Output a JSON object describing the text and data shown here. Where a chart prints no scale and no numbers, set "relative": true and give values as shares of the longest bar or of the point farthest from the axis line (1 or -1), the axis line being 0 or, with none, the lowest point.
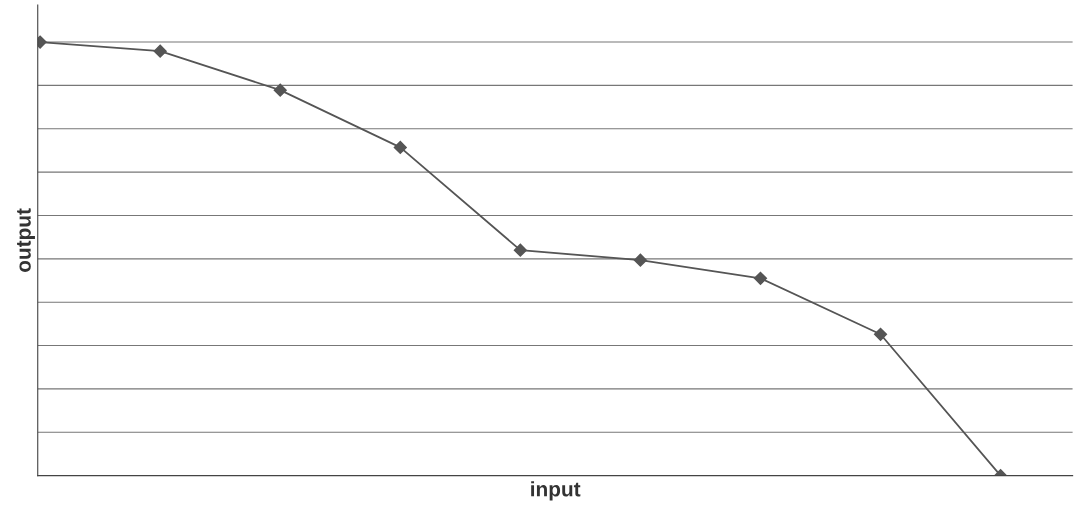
{
  "chart_data": {
    "type": "line",
    "xlabel": "input",
    "ylabel": "output",
    "relative": true,
    "grid": "y",
    "marker": "diamond",
    "line_style": "solid",
    "categories": [
      null,
      null,
      null,
      null,
      null,
      null,
      null,
      null,
      null
    ],
    "series": [
      {
        "color": "#555555",
        "values": [
          1,
          0.979,
          0.889,
          0.757,
          0.52,
          0.497,
          0.455,
          0.326,
          0
        ]
      }
    ]
  }
}
